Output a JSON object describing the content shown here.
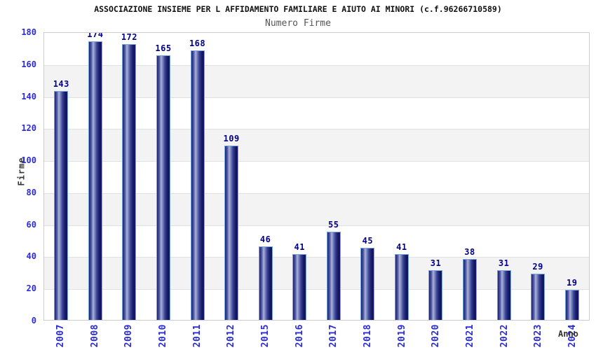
{
  "header": {
    "title": "ASSOCIAZIONE INSIEME PER L AFFIDAMENTO FAMILIARE E AIUTO AI MINORI (c.f.96266710589)",
    "subtitle": "Numero Firme"
  },
  "chart_data": {
    "type": "bar",
    "title": "ASSOCIAZIONE INSIEME PER L AFFIDAMENTO FAMILIARE E AIUTO AI MINORI (c.f.96266710589)",
    "subtitle": "Numero Firme",
    "xlabel": "Anno",
    "ylabel": "Firme",
    "categories": [
      "2007",
      "2008",
      "2009",
      "2010",
      "2011",
      "2012",
      "2015",
      "2016",
      "2017",
      "2018",
      "2019",
      "2020",
      "2021",
      "2022",
      "2023",
      "2024"
    ],
    "values": [
      143,
      174,
      172,
      165,
      168,
      109,
      46,
      41,
      55,
      45,
      41,
      31,
      38,
      31,
      29,
      19
    ],
    "ylim": [
      0,
      180
    ],
    "yticks": [
      0,
      20,
      40,
      60,
      80,
      100,
      120,
      140,
      160,
      180
    ],
    "grid": "horizontal-bands-alternating",
    "legend": false,
    "colors": {
      "bar_fill": "#2b2b8f",
      "bar_border": "#76a5e0",
      "value_label": "#00008b",
      "tick_label": "#2b2bd9",
      "axis_title": "#333333",
      "band_gray": "#f3f3f3",
      "band_white": "#ffffff",
      "gridline": "#e0e0e0",
      "plot_border": "#cccccc",
      "title": "#111111",
      "subtitle": "#555555"
    }
  }
}
